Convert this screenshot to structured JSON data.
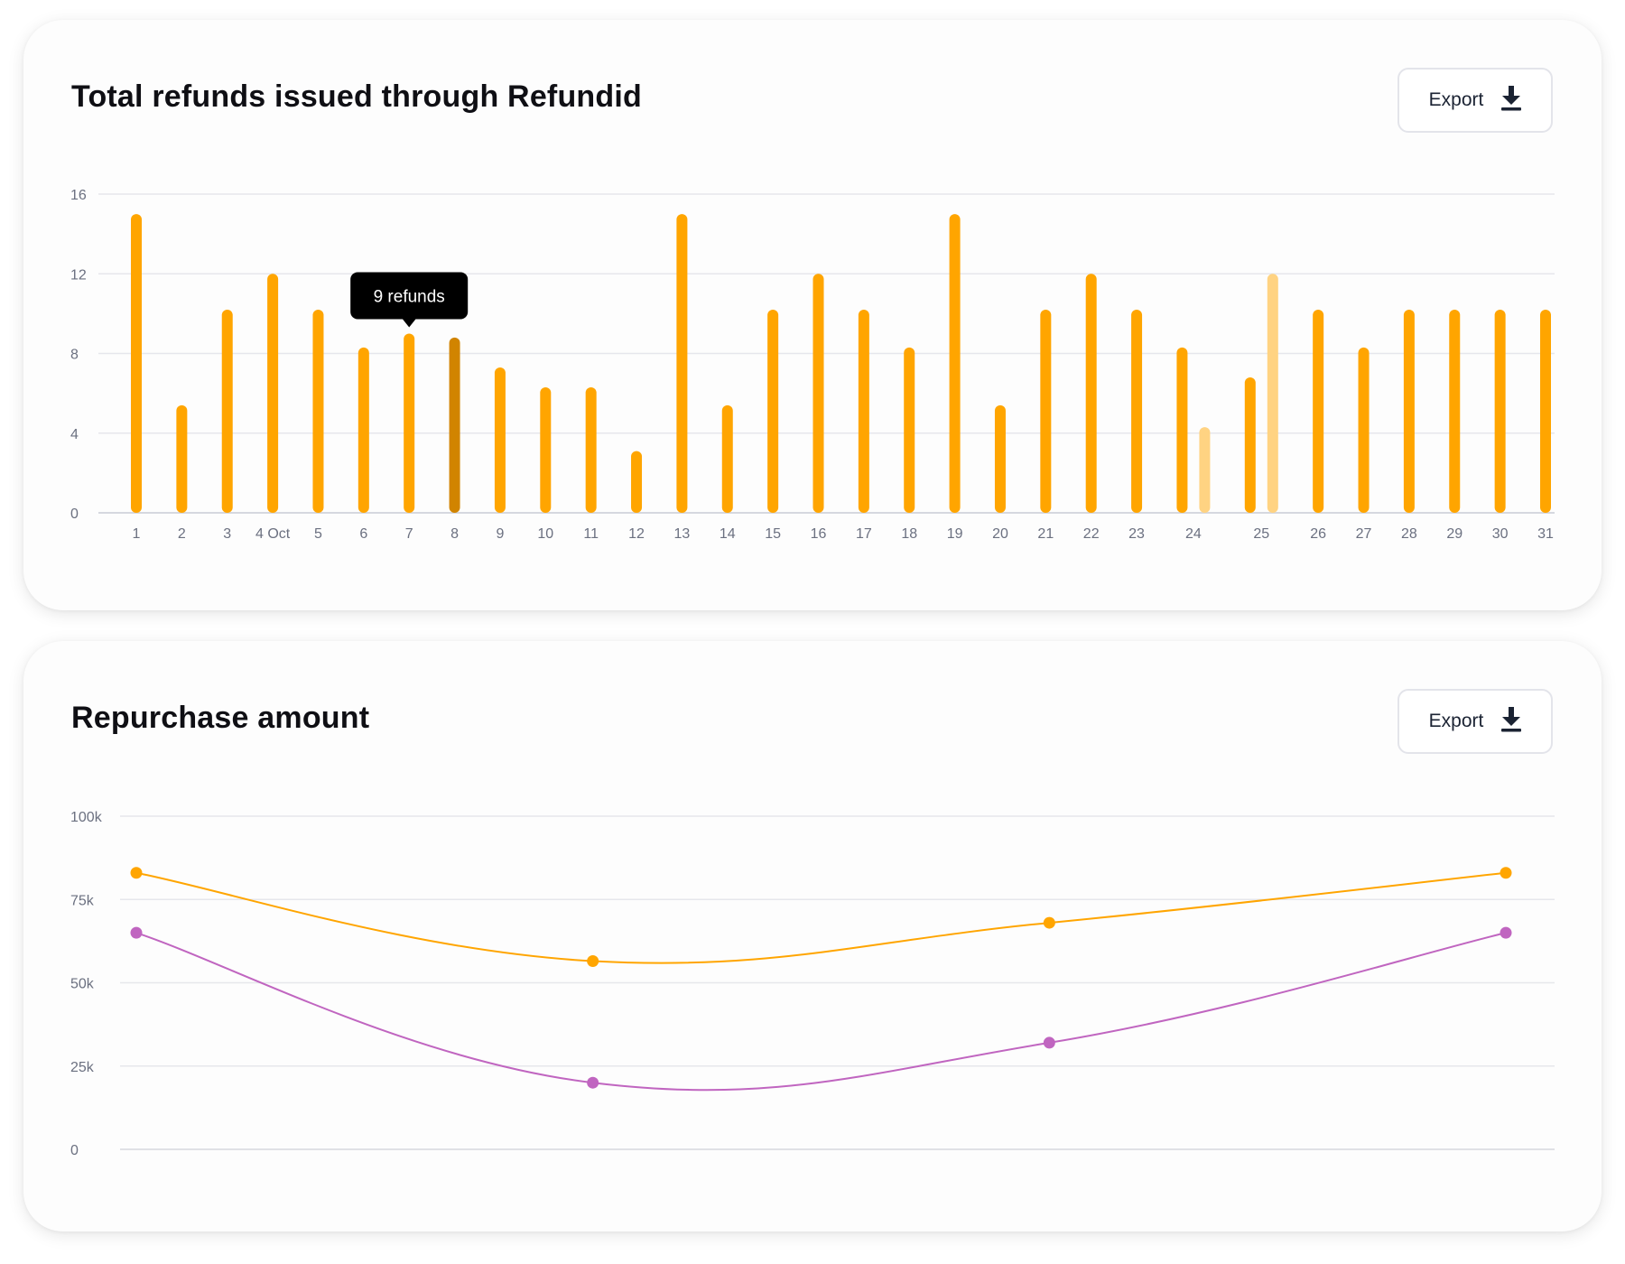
{
  "colors": {
    "bar": "#FFA500",
    "bar_selected": "#D18400",
    "bar_faded": "#FFD382",
    "series_orange": "#FFA500",
    "series_purple": "#C065C0",
    "grid": "#E6E7EC",
    "tooltip_bg": "#000000"
  },
  "refunds_card": {
    "title": "Total refunds issued through Refundid",
    "export_label": "Export",
    "export_icon": "download-icon",
    "tooltip": "9 refunds"
  },
  "repurchase_card": {
    "title": "Repurchase amount",
    "export_label": "Export",
    "export_icon": "download-icon"
  },
  "chart_data": [
    {
      "type": "bar",
      "title": "Total refunds issued through Refundid",
      "y_ticks": [
        "0",
        "4",
        "8",
        "12",
        "16"
      ],
      "ylim": [
        0,
        16
      ],
      "grid": true,
      "categories": [
        "1",
        "2",
        "3",
        "4 Oct",
        "5",
        "6",
        "7",
        "8",
        "9",
        "10",
        "11",
        "12",
        "13",
        "14",
        "15",
        "16",
        "17",
        "18",
        "19",
        "20",
        "21",
        "22",
        "23",
        "24",
        "25",
        "26",
        "27",
        "28",
        "29",
        "30",
        "31"
      ],
      "bars": [
        {
          "category": "1",
          "value": 15
        },
        {
          "category": "2",
          "value": 5.4
        },
        {
          "category": "3",
          "value": 10.2
        },
        {
          "category": "4 Oct",
          "value": 12
        },
        {
          "category": "5",
          "value": 10.2
        },
        {
          "category": "6",
          "value": 8.3
        },
        {
          "category": "7",
          "value": 9,
          "tooltip": true
        },
        {
          "category": "8",
          "value": 8.8,
          "state": "selected"
        },
        {
          "category": "9",
          "value": 7.3
        },
        {
          "category": "10",
          "value": 6.3
        },
        {
          "category": "11",
          "value": 6.3
        },
        {
          "category": "12",
          "value": 3.1
        },
        {
          "category": "13",
          "value": 15
        },
        {
          "category": "14",
          "value": 5.4
        },
        {
          "category": "15",
          "value": 10.2
        },
        {
          "category": "16",
          "value": 12
        },
        {
          "category": "17",
          "value": 10.2
        },
        {
          "category": "18",
          "value": 8.3
        },
        {
          "category": "19",
          "value": 15
        },
        {
          "category": "20",
          "value": 5.4
        },
        {
          "category": "21",
          "value": 10.2
        },
        {
          "category": "22",
          "value": 12
        },
        {
          "category": "23",
          "value": 10.2
        },
        {
          "category": "24",
          "value": 8.3
        },
        {
          "category": "24",
          "value": 4.3,
          "state": "faded"
        },
        {
          "category": "25",
          "value": 6.8
        },
        {
          "category": "25",
          "value": 12,
          "state": "faded"
        },
        {
          "category": "26",
          "value": 10.2
        },
        {
          "category": "27",
          "value": 8.3
        },
        {
          "category": "28",
          "value": 10.2
        },
        {
          "category": "29",
          "value": 10.2
        },
        {
          "category": "30",
          "value": 10.2
        },
        {
          "category": "31",
          "value": 10.2
        }
      ]
    },
    {
      "type": "line",
      "title": "Repurchase amount",
      "y_ticks": [
        "0",
        "25k",
        "50k",
        "75k",
        "100k"
      ],
      "ylim": [
        0,
        100000
      ],
      "grid": true,
      "x": [
        1,
        2,
        3,
        4
      ],
      "series": [
        {
          "color": "#FFA500",
          "values": [
            83000,
            56500,
            68000,
            83000
          ]
        },
        {
          "color": "#C065C0",
          "values": [
            65000,
            20000,
            32000,
            65000
          ]
        }
      ]
    }
  ]
}
